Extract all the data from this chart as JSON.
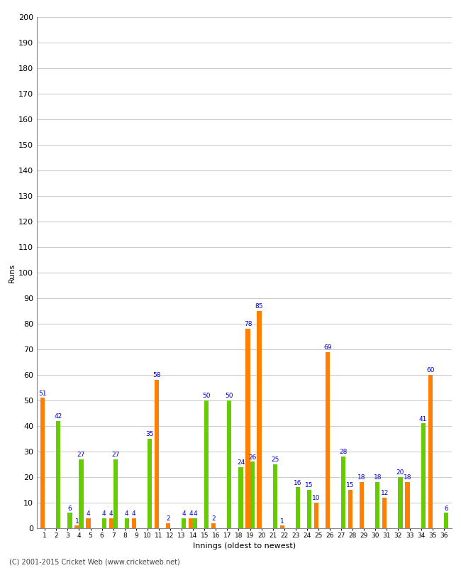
{
  "innings": [
    1,
    2,
    3,
    4,
    5,
    6,
    7,
    8,
    9,
    10,
    11,
    12,
    13,
    14,
    15,
    16,
    17,
    18,
    19,
    20,
    21,
    22,
    23,
    24,
    25,
    26,
    27,
    28,
    29,
    30,
    31,
    32,
    33,
    34,
    35,
    36
  ],
  "orange_vals": [
    51,
    0,
    0,
    1,
    4,
    0,
    4,
    0,
    4,
    0,
    58,
    2,
    0,
    4,
    0,
    2,
    0,
    0,
    78,
    85,
    0,
    1,
    0,
    0,
    10,
    69,
    0,
    15,
    18,
    0,
    12,
    0,
    18,
    0,
    60,
    0
  ],
  "green_vals": [
    0,
    42,
    6,
    27,
    0,
    4,
    27,
    4,
    0,
    35,
    0,
    0,
    4,
    4,
    50,
    0,
    50,
    24,
    26,
    0,
    25,
    0,
    16,
    15,
    0,
    0,
    28,
    0,
    0,
    18,
    0,
    20,
    0,
    41,
    0,
    6
  ],
  "orange_color": "#ff8000",
  "green_color": "#66cc00",
  "bg_color": "#ffffff",
  "plot_bg_color": "#ffffff",
  "grid_color": "#cccccc",
  "label_color": "#0000cc",
  "ylabel": "Runs",
  "xlabel": "Innings (oldest to newest)",
  "footer": "(C) 2001-2015 Cricket Web (www.cricketweb.net)",
  "ylim": [
    0,
    200
  ],
  "yticks": [
    0,
    10,
    20,
    30,
    40,
    50,
    60,
    70,
    80,
    90,
    100,
    110,
    120,
    130,
    140,
    150,
    160,
    170,
    180,
    190,
    200
  ],
  "label_fontsize": 6.5,
  "tick_fontsize": 8,
  "bar_width": 0.38
}
